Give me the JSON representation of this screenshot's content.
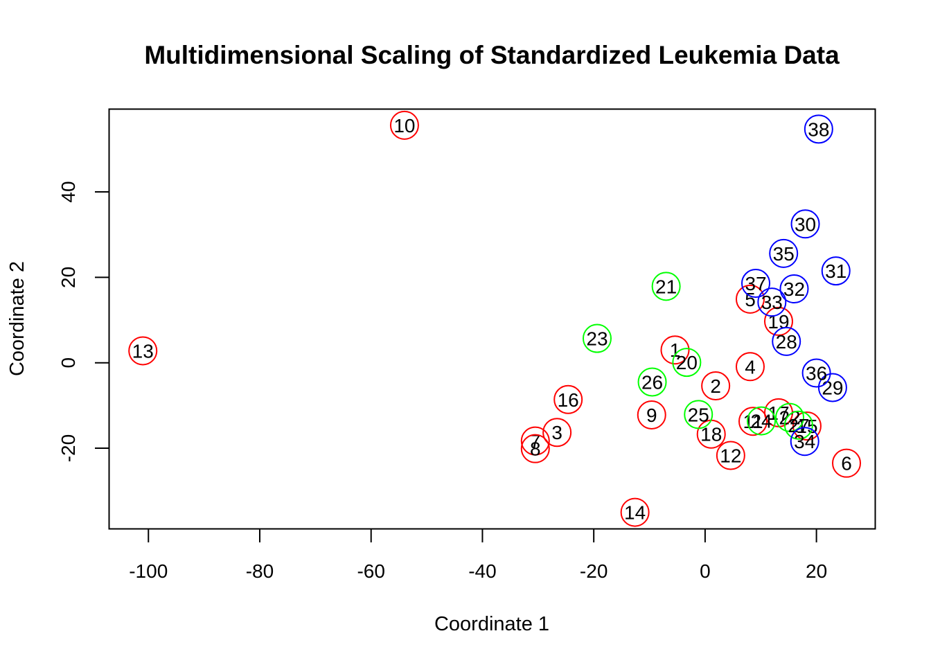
{
  "chart_data": {
    "type": "scatter",
    "title": "Multidimensional Scaling of Standardized Leukemia Data",
    "xlabel": "Coordinate 1",
    "ylabel": "Coordinate 2",
    "xlim": [
      -107,
      30.5
    ],
    "ylim": [
      -38.8,
      59.3
    ],
    "xticks": [
      -100,
      -80,
      -60,
      -40,
      -20,
      0,
      20
    ],
    "yticks": [
      -20,
      0,
      20,
      40
    ],
    "grid": false,
    "legend": "none",
    "colors": {
      "red": "#ff0000",
      "green": "#00ff00",
      "blue": "#0000ff",
      "axis": "#000000"
    },
    "points": [
      {
        "label": "1",
        "x": -5.4,
        "y": 3.0,
        "color": "red"
      },
      {
        "label": "2",
        "x": 1.9,
        "y": -5.4,
        "color": "red"
      },
      {
        "label": "3",
        "x": -26.6,
        "y": -16.3,
        "color": "red"
      },
      {
        "label": "4",
        "x": 8.1,
        "y": -0.9,
        "color": "red"
      },
      {
        "label": "5",
        "x": 8.1,
        "y": 14.9,
        "color": "red"
      },
      {
        "label": "6",
        "x": 25.4,
        "y": -23.5,
        "color": "red"
      },
      {
        "label": "7",
        "x": -30.5,
        "y": -18.3,
        "color": "red"
      },
      {
        "label": "8",
        "x": -30.5,
        "y": -20.1,
        "color": "red"
      },
      {
        "label": "9",
        "x": -9.6,
        "y": -12.2,
        "color": "red"
      },
      {
        "label": "10",
        "x": -54.0,
        "y": 55.6,
        "color": "red"
      },
      {
        "label": "11",
        "x": 8.6,
        "y": -13.7,
        "color": "red"
      },
      {
        "label": "12",
        "x": 4.6,
        "y": -21.7,
        "color": "red"
      },
      {
        "label": "13",
        "x": -101.0,
        "y": 2.8,
        "color": "red"
      },
      {
        "label": "14",
        "x": -12.6,
        "y": -35.0,
        "color": "red"
      },
      {
        "label": "15",
        "x": 18.3,
        "y": -14.8,
        "color": "red"
      },
      {
        "label": "16",
        "x": -24.6,
        "y": -8.6,
        "color": "red"
      },
      {
        "label": "17",
        "x": 13.2,
        "y": -11.7,
        "color": "red"
      },
      {
        "label": "18",
        "x": 1.1,
        "y": -16.7,
        "color": "red"
      },
      {
        "label": "19",
        "x": 13.2,
        "y": 9.7,
        "color": "red"
      },
      {
        "label": "20",
        "x": -3.3,
        "y": 0.1,
        "color": "green"
      },
      {
        "label": "21",
        "x": -7.0,
        "y": 17.9,
        "color": "green"
      },
      {
        "label": "22",
        "x": 15.2,
        "y": -12.8,
        "color": "green"
      },
      {
        "label": "23",
        "x": -19.4,
        "y": 5.7,
        "color": "green"
      },
      {
        "label": "24",
        "x": 10.1,
        "y": -13.6,
        "color": "green"
      },
      {
        "label": "25",
        "x": -1.2,
        "y": -12.1,
        "color": "green"
      },
      {
        "label": "26",
        "x": -9.5,
        "y": -4.5,
        "color": "green"
      },
      {
        "label": "27",
        "x": 16.8,
        "y": -14.6,
        "color": "green"
      },
      {
        "label": "28",
        "x": 14.6,
        "y": 5.0,
        "color": "blue"
      },
      {
        "label": "29",
        "x": 22.9,
        "y": -5.8,
        "color": "blue"
      },
      {
        "label": "30",
        "x": 18.0,
        "y": 32.5,
        "color": "blue"
      },
      {
        "label": "31",
        "x": 23.5,
        "y": 21.5,
        "color": "blue"
      },
      {
        "label": "32",
        "x": 16.0,
        "y": 17.3,
        "color": "blue"
      },
      {
        "label": "33",
        "x": 12.0,
        "y": 14.2,
        "color": "blue"
      },
      {
        "label": "34",
        "x": 17.9,
        "y": -18.4,
        "color": "blue"
      },
      {
        "label": "35",
        "x": 14.1,
        "y": 25.6,
        "color": "blue"
      },
      {
        "label": "36",
        "x": 20.0,
        "y": -2.4,
        "color": "blue"
      },
      {
        "label": "37",
        "x": 9.1,
        "y": 18.6,
        "color": "blue"
      },
      {
        "label": "38",
        "x": 20.4,
        "y": 54.7,
        "color": "blue"
      }
    ]
  }
}
